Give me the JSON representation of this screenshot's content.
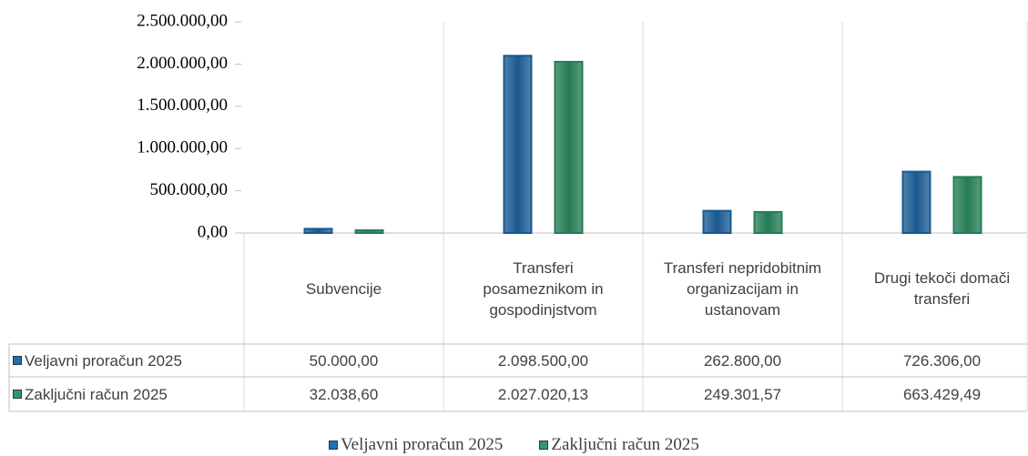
{
  "chart_data": {
    "type": "bar",
    "categories": [
      "Subvencije",
      "Transferi posameznikom in gospodinjstvom",
      "Transferi nepridobitnim organizacijam in ustanovam",
      "Drugi tekoči domači transferi"
    ],
    "series": [
      {
        "name": "Veljavni proračun 2025",
        "color": "#1f6fb5",
        "values": [
          50000,
          2098500,
          262800,
          726306
        ],
        "value_labels": [
          "50.000,00",
          "2.098.500,00",
          "262.800,00",
          "726.306,00"
        ]
      },
      {
        "name": "Zaključni račun 2025",
        "color": "#2e9a6a",
        "values": [
          32038.6,
          2027020.13,
          249301.57,
          663429.49
        ],
        "value_labels": [
          "32.038,60",
          "2.027.020,13",
          "249.301,57",
          "663.429,49"
        ]
      }
    ],
    "ylim": [
      0,
      2500000
    ],
    "yticks": [
      {
        "value": 0,
        "label": "0,00"
      },
      {
        "value": 500000,
        "label": "500.000,00"
      },
      {
        "value": 1000000,
        "label": "1.000.000,00"
      },
      {
        "value": 1500000,
        "label": "1.500.000,00"
      },
      {
        "value": 2000000,
        "label": "2.000.000,00"
      },
      {
        "value": 2500000,
        "label": "2.500.000,00"
      }
    ],
    "legend": "bottom"
  }
}
